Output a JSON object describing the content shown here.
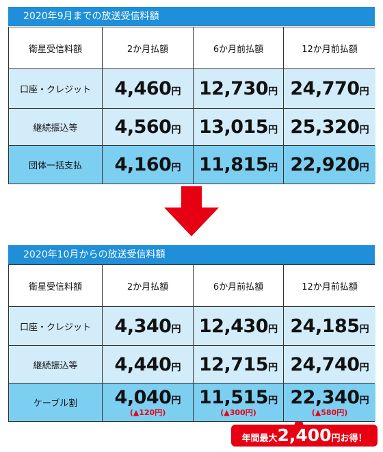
{
  "tables": [
    {
      "title": "2020年9月までの放送受信料額",
      "header": [
        "衛星受信料額",
        "2か月払額",
        "6か月前払額",
        "12か月前払額"
      ],
      "rows": [
        {
          "label": "口座・クレジット",
          "cells": [
            {
              "amount": "4,460",
              "unit": "円"
            },
            {
              "amount": "12,730",
              "unit": "円"
            },
            {
              "amount": "24,770",
              "unit": "円"
            }
          ]
        },
        {
          "label": "継続振込等",
          "cells": [
            {
              "amount": "4,560",
              "unit": "円"
            },
            {
              "amount": "13,015",
              "unit": "円"
            },
            {
              "amount": "25,320",
              "unit": "円"
            }
          ]
        },
        {
          "label": "団体一括支払",
          "cells": [
            {
              "amount": "4,160",
              "unit": "円"
            },
            {
              "amount": "11,815",
              "unit": "円"
            },
            {
              "amount": "22,920",
              "unit": "円"
            }
          ]
        }
      ]
    },
    {
      "title": "2020年10月からの放送受信料額",
      "header": [
        "衛星受信料額",
        "2か月払額",
        "6か月前払額",
        "12か月前払額"
      ],
      "rows": [
        {
          "label": "口座・クレジット",
          "cells": [
            {
              "amount": "4,340",
              "unit": "円"
            },
            {
              "amount": "12,430",
              "unit": "円"
            },
            {
              "amount": "24,185",
              "unit": "円"
            }
          ]
        },
        {
          "label": "継続振込等",
          "cells": [
            {
              "amount": "4,440",
              "unit": "円"
            },
            {
              "amount": "12,715",
              "unit": "円"
            },
            {
              "amount": "24,740",
              "unit": "円"
            }
          ]
        },
        {
          "label": "ケーブル割",
          "cells": [
            {
              "amount": "4,040",
              "unit": "円",
              "discount": "(▲120円)"
            },
            {
              "amount": "11,515",
              "unit": "円",
              "discount": "(▲300円)"
            },
            {
              "amount": "22,340",
              "unit": "円",
              "discount": "(▲580円)"
            }
          ]
        }
      ]
    }
  ],
  "callout": {
    "prefix": "年間最大",
    "amount": "2,400",
    "suffix": "円お得！"
  }
}
